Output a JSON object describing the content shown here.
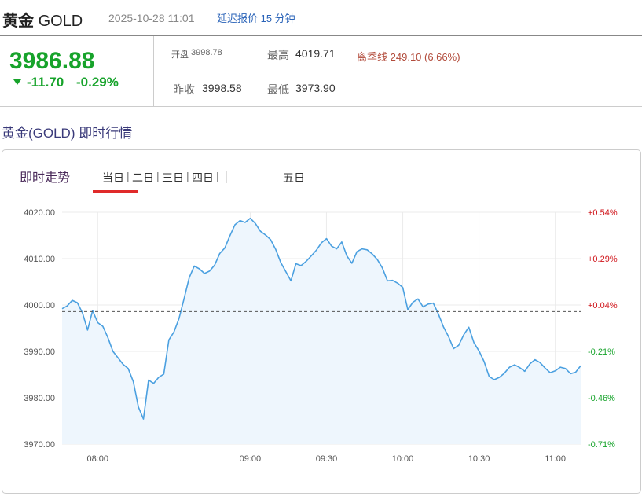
{
  "header": {
    "title_cn": "黄金",
    "title_en": "GOLD",
    "timestamp": "2025-10-28 11:01",
    "delay_note": "延迟报价 15 分钟"
  },
  "quote": {
    "price": "3986.88",
    "change": "-11.70",
    "change_pct": "-0.29%",
    "open_label": "开盘",
    "open": "3998.78",
    "high_label": "最高",
    "high": "4019.71",
    "season_label": "离季线",
    "season_value": "249.10 (6.66%)",
    "prev_close_label": "昨收",
    "prev_close": "3998.58",
    "low_label": "最低",
    "low": "3973.90"
  },
  "section": {
    "title": "黄金(GOLD) 即时行情"
  },
  "panel": {
    "title": "即时走势",
    "tabs": [
      "当日",
      "|",
      "二日",
      "|",
      "三日",
      "|",
      "四日",
      "|",
      "五日"
    ]
  },
  "colors": {
    "up": "#d0161c",
    "down": "#17a32b",
    "line": "#4ba0e0",
    "fill": "#eef6fd"
  },
  "chart_data": {
    "type": "line",
    "title": "",
    "xlabel": "",
    "ylabel": "",
    "x_ticks": [
      "08:00",
      "09:00",
      "09:30",
      "10:00",
      "10:30",
      "11:00"
    ],
    "y_ticks": [
      "3970.00",
      "3980.00",
      "3990.00",
      "4000.00",
      "4010.00",
      "4020.00"
    ],
    "y2_ticks": [
      "-0.71%",
      "-0.46%",
      "-0.21%",
      "+0.04%",
      "+0.29%",
      "+0.54%"
    ],
    "ylim": [
      3970,
      4020
    ],
    "reference_line": 3998.58,
    "x_start": "07:46",
    "x_end": "11:10",
    "series": [
      {
        "x": [
          "07:46",
          "07:48",
          "07:50",
          "07:52",
          "07:54",
          "07:56",
          "07:58",
          "08:00",
          "08:02",
          "08:04",
          "08:06",
          "08:08",
          "08:10",
          "08:12",
          "08:14",
          "08:16",
          "08:18",
          "08:20",
          "08:22",
          "08:24",
          "08:26",
          "08:28",
          "08:30",
          "08:32",
          "08:34",
          "08:36",
          "08:38",
          "08:40",
          "08:42",
          "08:44",
          "08:46",
          "08:48",
          "08:50",
          "08:52",
          "08:54",
          "08:56",
          "08:58",
          "09:00",
          "09:02",
          "09:04",
          "09:06",
          "09:08",
          "09:10",
          "09:12",
          "09:14",
          "09:16",
          "09:18",
          "09:20",
          "09:22",
          "09:24",
          "09:26",
          "09:28",
          "09:30",
          "09:32",
          "09:34",
          "09:36",
          "09:38",
          "09:40",
          "09:42",
          "09:44",
          "09:46",
          "09:48",
          "09:50",
          "09:52",
          "09:54",
          "09:56",
          "09:58",
          "10:00",
          "10:02",
          "10:04",
          "10:06",
          "10:08",
          "10:10",
          "10:12",
          "10:14",
          "10:16",
          "10:18",
          "10:20",
          "10:22",
          "10:24",
          "10:26",
          "10:28",
          "10:30",
          "10:32",
          "10:34",
          "10:36",
          "10:38",
          "10:40",
          "10:42",
          "10:44",
          "10:46",
          "10:48",
          "10:50",
          "10:52",
          "10:54",
          "10:56",
          "10:58",
          "11:00",
          "11:02",
          "11:04",
          "11:06",
          "11:08",
          "11:10"
        ],
        "values": [
          3999.2,
          3999.8,
          4001.0,
          4000.5,
          3998.3,
          3994.6,
          3998.8,
          3996.2,
          3995.4,
          3993.0,
          3990.0,
          3988.6,
          3987.2,
          3986.3,
          3983.5,
          3978.0,
          3975.4,
          3983.8,
          3983.1,
          3984.4,
          3985.1,
          3992.5,
          3994.2,
          3997.1,
          4001.4,
          4005.9,
          4008.4,
          4007.8,
          4006.8,
          4007.3,
          4008.6,
          4011.1,
          4012.3,
          4014.9,
          4017.3,
          4018.2,
          4017.8,
          4018.7,
          4017.6,
          4015.9,
          4015.1,
          4014.1,
          4012.0,
          4009.2,
          4007.2,
          4005.2,
          4008.9,
          4008.5,
          4009.4,
          4010.6,
          4011.8,
          4013.4,
          4014.3,
          4012.7,
          4012.1,
          4013.6,
          4010.6,
          4009.0,
          4011.5,
          4012.1,
          4011.9,
          4011.0,
          4009.8,
          4008.0,
          4005.2,
          4005.3,
          4004.7,
          4003.8,
          3999.0,
          4000.6,
          4001.3,
          3999.6,
          4000.2,
          4000.4,
          3998.1,
          3995.3,
          3993.2,
          3990.6,
          3991.3,
          3993.6,
          3995.2,
          3991.9,
          3990.1,
          3987.8,
          3984.6,
          3983.9,
          3984.4,
          3985.3,
          3986.6,
          3987.1,
          3986.5,
          3985.7,
          3987.3,
          3988.2,
          3987.6,
          3986.4,
          3985.4,
          3985.8,
          3986.6,
          3986.3,
          3985.2,
          3985.5,
          3986.9
        ]
      }
    ]
  }
}
